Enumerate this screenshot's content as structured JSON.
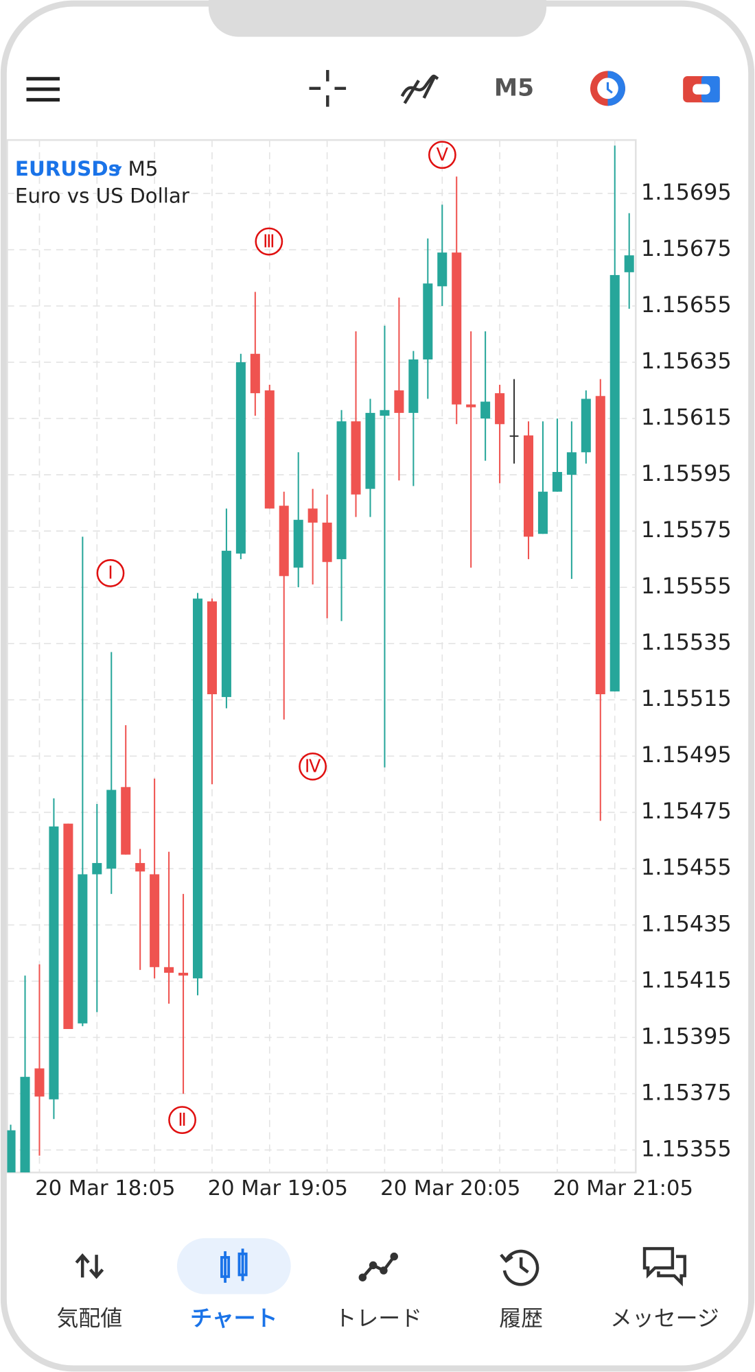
{
  "toolbar": {
    "timeframe": "M5"
  },
  "chart_data": {
    "type": "candlestick",
    "symbol": "EURUSDs",
    "timeframe": "M5",
    "description": "Euro vs US Dollar",
    "categories": [
      null,
      null,
      null,
      null,
      null,
      null,
      null,
      "20 Mar 18:05",
      null,
      null,
      null,
      null,
      null,
      null,
      null,
      null,
      null,
      null,
      null,
      "20 Mar 19:05",
      null,
      null,
      null,
      null,
      null,
      null,
      null,
      null,
      null,
      null,
      null,
      "20 Mar 20:05",
      null,
      null,
      null,
      null,
      null,
      null,
      null,
      null,
      null,
      null,
      null,
      "20 Mar 21:05"
    ],
    "open": [
      1.15347,
      1.15347,
      1.15384,
      1.15373,
      1.15471,
      1.154,
      1.15453,
      1.15455,
      1.15484,
      1.15457,
      1.15453,
      1.1542,
      1.15418,
      1.15416,
      1.1555,
      1.15516,
      1.15567,
      1.15638,
      1.15625,
      1.15584,
      1.15562,
      1.15583,
      1.15578,
      1.15565,
      1.15614,
      1.1559,
      1.15616,
      1.15625,
      1.15617,
      1.15636,
      1.15662,
      1.15674,
      1.1562,
      1.15615,
      1.15624,
      1.15609,
      1.15609,
      1.15574,
      1.15589,
      1.15595,
      1.15603,
      1.15623,
      1.15518,
      1.15667
    ],
    "high": [
      1.15364,
      1.15417,
      1.15421,
      1.1548,
      1.15471,
      1.15573,
      1.15478,
      1.15532,
      1.15506,
      1.15462,
      1.15487,
      1.15461,
      1.15446,
      1.15553,
      1.15551,
      1.15583,
      1.15638,
      1.1566,
      1.15627,
      1.15589,
      1.15603,
      1.1559,
      1.15588,
      1.15618,
      1.15646,
      1.15622,
      1.15648,
      1.15658,
      1.15639,
      1.15679,
      1.15691,
      1.15701,
      1.15646,
      1.15646,
      1.15627,
      1.15629,
      1.15614,
      1.15614,
      1.15615,
      1.15614,
      1.15625,
      1.15629,
      1.15712,
      1.15688
    ],
    "low": [
      1.15347,
      1.15347,
      1.15353,
      1.15366,
      1.15398,
      1.15399,
      1.15404,
      1.15446,
      1.1546,
      1.15419,
      1.15416,
      1.15407,
      1.15375,
      1.1541,
      1.15485,
      1.15512,
      1.15565,
      1.15616,
      1.15583,
      1.15508,
      1.15555,
      1.15556,
      1.15544,
      1.15543,
      1.1558,
      1.1558,
      1.15491,
      1.15593,
      1.15591,
      1.15622,
      1.15655,
      1.15613,
      1.15562,
      1.156,
      1.15592,
      1.15599,
      1.15565,
      1.15574,
      1.15589,
      1.15558,
      1.15599,
      1.15472,
      1.15518,
      1.15654
    ],
    "close": [
      1.15362,
      1.15381,
      1.15374,
      1.1547,
      1.15398,
      1.15453,
      1.15457,
      1.15483,
      1.1546,
      1.15454,
      1.1542,
      1.15418,
      1.15417,
      1.15551,
      1.15517,
      1.15568,
      1.15635,
      1.15624,
      1.15583,
      1.15559,
      1.15579,
      1.15578,
      1.15564,
      1.15614,
      1.15588,
      1.15617,
      1.15618,
      1.15617,
      1.15636,
      1.15663,
      1.15674,
      1.1562,
      1.15619,
      1.15621,
      1.15613,
      1.15609,
      1.15573,
      1.15589,
      1.15596,
      1.15603,
      1.15622,
      1.15517,
      1.15666,
      1.15673
    ],
    "up_color": "#26a69a",
    "down_color": "#ef5350",
    "doji_color": "#333333",
    "ylim": [
      1.15347,
      1.15714
    ],
    "yticks": [
      1.15355,
      1.15375,
      1.15395,
      1.15415,
      1.15435,
      1.15455,
      1.15475,
      1.15495,
      1.15515,
      1.15535,
      1.15555,
      1.15575,
      1.15595,
      1.15615,
      1.15635,
      1.15655,
      1.15675,
      1.15695
    ],
    "grid": true,
    "annotations": [
      "Ⅰ",
      "Ⅱ",
      "Ⅲ",
      "Ⅳ",
      "Ⅴ"
    ],
    "annotation_color": "#e01010"
  },
  "nav": {
    "items": [
      "気配値",
      "チャート",
      "トレード",
      "履歴",
      "メッセージ"
    ]
  }
}
